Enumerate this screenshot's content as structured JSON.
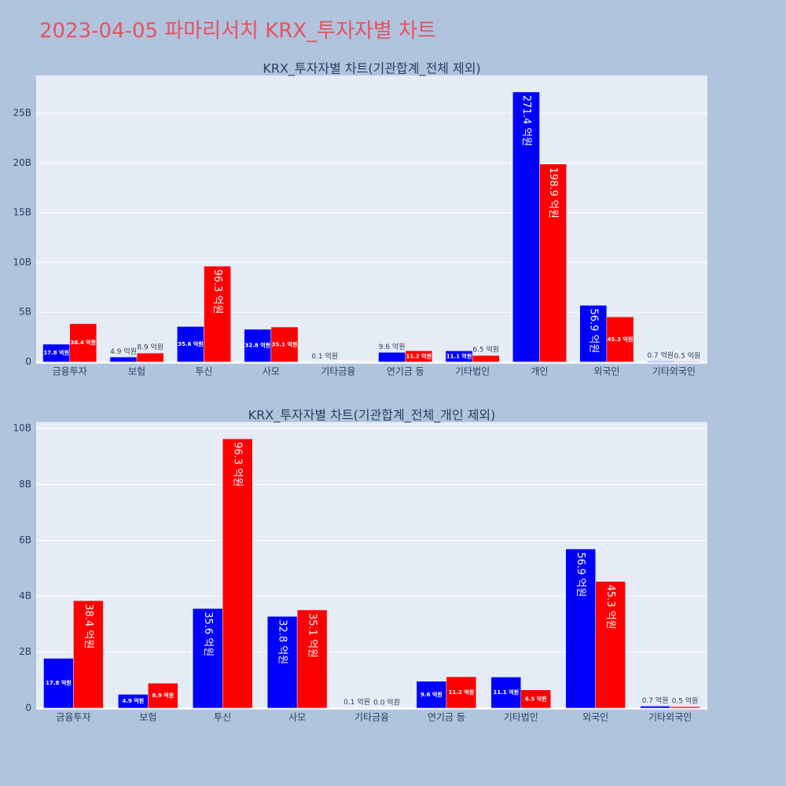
{
  "title": "2023-04-05 파마리서치 KRX_투자자별 차트",
  "chart_data": [
    {
      "type": "bar",
      "title": "KRX_투자자별 차트(기관합계_전체 제외)",
      "categories": [
        "금융투자",
        "보험",
        "투신",
        "사모",
        "기타금융",
        "연기금 등",
        "기타법인",
        "개인",
        "외국인",
        "기타외국인"
      ],
      "series": [
        {
          "color": "#0000ff",
          "values": [
            1780000000,
            490000000,
            3560000000,
            3280000000,
            10000000,
            960000000,
            1110000000,
            27140000000,
            5690000000,
            70000000
          ],
          "value_labels": [
            "17.8 억원",
            "4.9 억원",
            "35.6 억원",
            "32.8 억원",
            "0.1 억원",
            "9.6 억원",
            "11.1 억원",
            "271.4 억원",
            "56.9 억원",
            "0.7 억원"
          ]
        },
        {
          "color": "#ff0000",
          "values": [
            3840000000,
            890000000,
            9630000000,
            3510000000,
            null,
            1120000000,
            650000000,
            19890000000,
            4530000000,
            50000000
          ],
          "value_labels": [
            "38.4 억원",
            "8.9 억원",
            "96.3 억원",
            "35.1 억원",
            null,
            "11.2 억원",
            "6.5 억원",
            "198.9 억원",
            "45.3 억원",
            "0.5 억원"
          ]
        }
      ],
      "ylim": [
        -200000000,
        28800000000
      ],
      "yticks": [
        0,
        {
          "value": 5000000000,
          "label": "5B"
        },
        {
          "value": 10000000000,
          "label": "10B"
        },
        {
          "value": 15000000000,
          "label": "15B"
        },
        {
          "value": 20000000000,
          "label": "20B"
        },
        {
          "value": 25000000000,
          "label": "25B"
        }
      ],
      "grid": true
    },
    {
      "type": "bar",
      "title": "KRX_투자자별 차트(기관합계_전체_개인 제외)",
      "categories": [
        "금융투자",
        "보험",
        "투신",
        "사모",
        "기타금융",
        "연기금 등",
        "기타법인",
        "외국인",
        "기타외국인"
      ],
      "series": [
        {
          "color": "#0000ff",
          "values": [
            1780000000,
            490000000,
            3560000000,
            3280000000,
            10000000,
            960000000,
            1110000000,
            5690000000,
            70000000
          ],
          "value_labels": [
            "17.8 억원",
            "4.9 억원",
            "35.6 억원",
            "32.8 억원",
            "0.1 억원",
            "9.6 억원",
            "11.1 억원",
            "56.9 억원",
            "0.7 억원"
          ]
        },
        {
          "color": "#ff0000",
          "values": [
            3840000000,
            890000000,
            9630000000,
            3510000000,
            0,
            1120000000,
            650000000,
            4530000000,
            50000000
          ],
          "value_labels": [
            "38.4 억원",
            "8.9 억원",
            "96.3 억원",
            "35.1 억원",
            "0.0 억원",
            "11.2 억원",
            "6.5 억원",
            "45.3 억원",
            "0.5 억원"
          ]
        }
      ],
      "ylim": [
        -60000000,
        10230000000
      ],
      "yticks": [
        0,
        {
          "value": 2000000000,
          "label": "2B"
        },
        {
          "value": 4000000000,
          "label": "4B"
        },
        {
          "value": 6000000000,
          "label": "6B"
        },
        {
          "value": 8000000000,
          "label": "8B"
        },
        {
          "value": 10000000000,
          "label": "10B"
        }
      ],
      "grid": true
    }
  ]
}
